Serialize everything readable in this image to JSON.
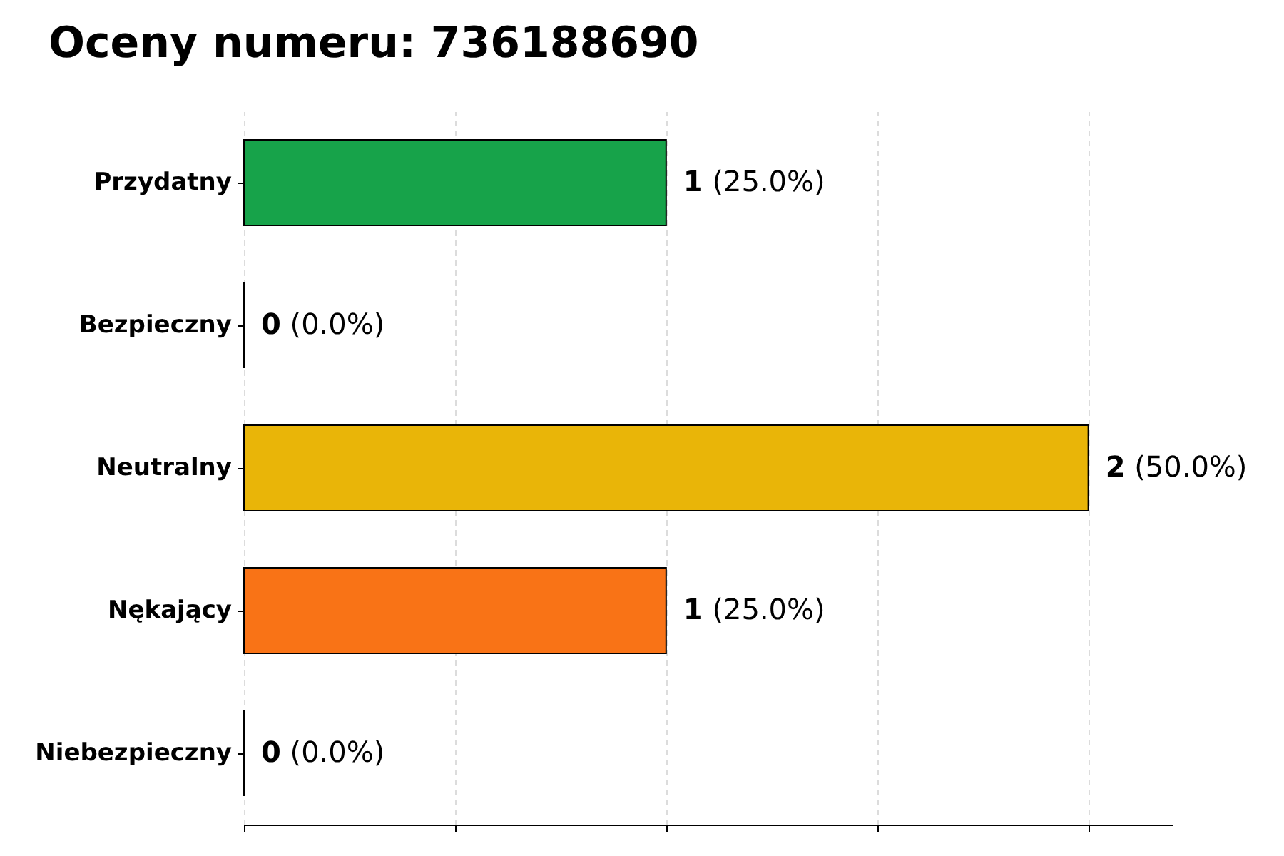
{
  "chart_data": {
    "type": "bar",
    "orientation": "horizontal",
    "title": "Oceny numeru: 736188690",
    "categories": [
      "Przydatny",
      "Bezpieczny",
      "Neutralny",
      "Nękający",
      "Niebezpieczny"
    ],
    "values": [
      1,
      0,
      2,
      1,
      0
    ],
    "colors": [
      "#17a34a",
      "#000000",
      "#e9b508",
      "#f97316",
      "#000000"
    ],
    "value_labels": [
      "1 (25.0%)",
      "0 (0.0%)",
      "2 (50.0%)",
      "1 (25.0%)",
      "0 (0.0%)"
    ],
    "xlim": [
      0,
      2.2
    ],
    "xticks": [
      {
        "value": 0,
        "label": null
      },
      {
        "value": 0.5,
        "label": null
      },
      {
        "value": 1,
        "label": null
      },
      {
        "value": 1.5,
        "label": null
      },
      {
        "value": 2,
        "label": null
      }
    ],
    "tick_labels": "y",
    "grid": "x"
  }
}
